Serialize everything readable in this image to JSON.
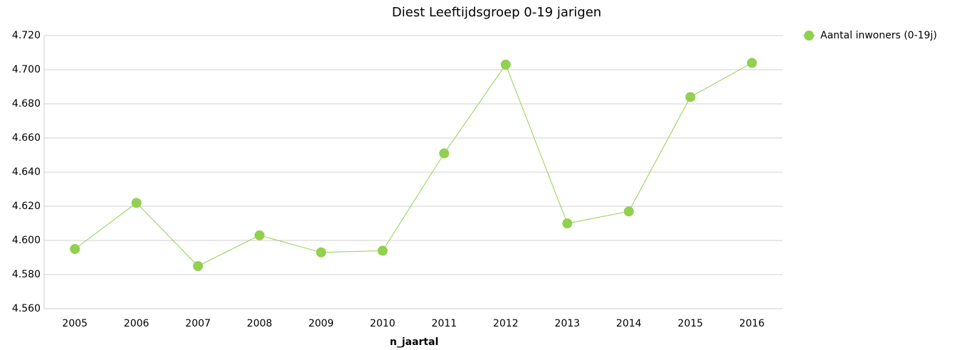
{
  "chart_data": {
    "type": "line",
    "title": "Diest  Leeftijdsgroep 0-19 jarigen",
    "x_label": "n_jaartal",
    "categories": [
      "2005",
      "2006",
      "2007",
      "2008",
      "2009",
      "2010",
      "2011",
      "2012",
      "2013",
      "2014",
      "2015",
      "2016"
    ],
    "series": [
      {
        "name": "Aantal inwoners (0-19j)",
        "color": "#92d050",
        "values": [
          4595,
          4622,
          4585,
          4603,
          4593,
          4594,
          4651,
          4703,
          4610,
          4617,
          4684,
          4704
        ]
      }
    ],
    "ylim": [
      4560,
      4720
    ],
    "yticks": [
      {
        "value": 4560,
        "label": "4.560"
      },
      {
        "value": 4580,
        "label": "4.580"
      },
      {
        "value": 4600,
        "label": "4.600"
      },
      {
        "value": 4620,
        "label": "4.620"
      },
      {
        "value": 4640,
        "label": "4.640"
      },
      {
        "value": 4660,
        "label": "4.660"
      },
      {
        "value": 4680,
        "label": "4.680"
      },
      {
        "value": 4700,
        "label": "4.700"
      },
      {
        "value": 4720,
        "label": "4.720"
      }
    ],
    "grid": true,
    "legend": "right"
  }
}
